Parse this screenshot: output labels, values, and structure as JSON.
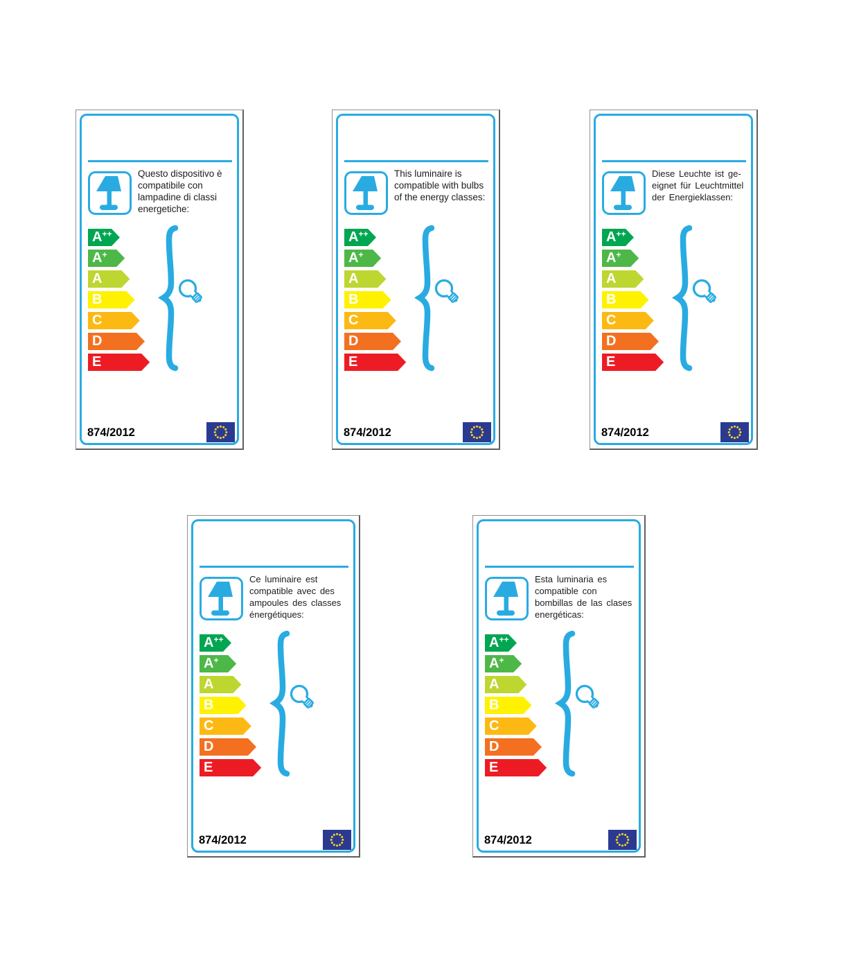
{
  "regulation_label": "874/2012",
  "palette": {
    "accent_blue": "#29abe2",
    "flag_blue": "#2b3a91",
    "star_yellow": "#ffd520",
    "text_color": "#1c1c1c"
  },
  "energy_classes": [
    {
      "label": "A",
      "sup": "++",
      "color": "#00a651"
    },
    {
      "label": "A",
      "sup": "+",
      "color": "#4db848"
    },
    {
      "label": "A",
      "sup": "",
      "color": "#bed630"
    },
    {
      "label": "B",
      "sup": "",
      "color": "#fff200"
    },
    {
      "label": "C",
      "sup": "",
      "color": "#fdb913"
    },
    {
      "label": "D",
      "sup": "",
      "color": "#f37021"
    },
    {
      "label": "E",
      "sup": "",
      "color": "#ed1c24"
    }
  ],
  "cards": [
    {
      "language": "italian",
      "wide_spacing": false,
      "description_lines": [
        "Questo dispositivo è",
        "compatibile con",
        "lampadine di classi",
        "energetiche:"
      ]
    },
    {
      "language": "english",
      "wide_spacing": false,
      "description_lines": [
        "This luminaire is",
        "compatible with bulbs",
        "of the energy classes:"
      ]
    },
    {
      "language": "german",
      "wide_spacing": true,
      "description_lines": [
        "Diese Leuchte ist ge-",
        "eignet für Leuchtmittel",
        "der Energieklassen:"
      ]
    },
    {
      "language": "french",
      "wide_spacing": true,
      "description_lines": [
        "Ce luminaire est",
        "compatible avec des",
        "ampoules des classes",
        "énergétiques:"
      ]
    },
    {
      "language": "spanish",
      "wide_spacing": true,
      "description_lines": [
        "Esta luminaria es",
        "compatible con",
        "bombillas de las clases",
        "energéticas:"
      ]
    }
  ]
}
